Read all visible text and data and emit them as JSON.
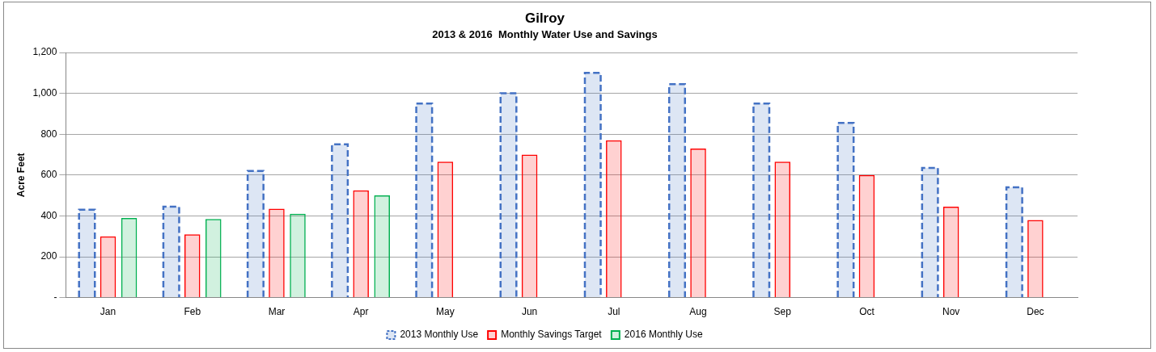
{
  "chart_data": {
    "type": "bar",
    "title": "Gilroy",
    "subtitle": "2013 & 2016  Monthly Water Use and Savings",
    "ylabel": "Acre Feet",
    "categories": [
      "Jan",
      "Feb",
      "Mar",
      "Apr",
      "May",
      "Jun",
      "Jul",
      "Aug",
      "Sep",
      "Oct",
      "Nov",
      "Dec"
    ],
    "series": [
      {
        "name": "2013 Monthly Use",
        "color": "#4472c4",
        "line_style": "dashed",
        "values": [
          430,
          445,
          620,
          750,
          950,
          1000,
          1100,
          1045,
          950,
          855,
          635,
          540
        ]
      },
      {
        "name": "Monthly Savings Target",
        "color": "#ff0000",
        "values": [
          300,
          310,
          435,
          525,
          665,
          700,
          770,
          730,
          665,
          600,
          445,
          380
        ]
      },
      {
        "name": "2016 Monthly Use",
        "color": "#00b050",
        "values": [
          390,
          385,
          410,
          500,
          null,
          null,
          null,
          null,
          null,
          null,
          null,
          null
        ]
      }
    ],
    "ylim": [
      0,
      1200
    ],
    "yticks": [
      {
        "value": 0,
        "label": "-"
      },
      {
        "value": 200,
        "label": "200"
      },
      {
        "value": 400,
        "label": "400"
      },
      {
        "value": 600,
        "label": "600"
      },
      {
        "value": 800,
        "label": "800"
      },
      {
        "value": 1000,
        "label": "1,000"
      },
      {
        "value": 1200,
        "label": "1,200"
      }
    ],
    "grid": "y",
    "legend": "bottom"
  }
}
